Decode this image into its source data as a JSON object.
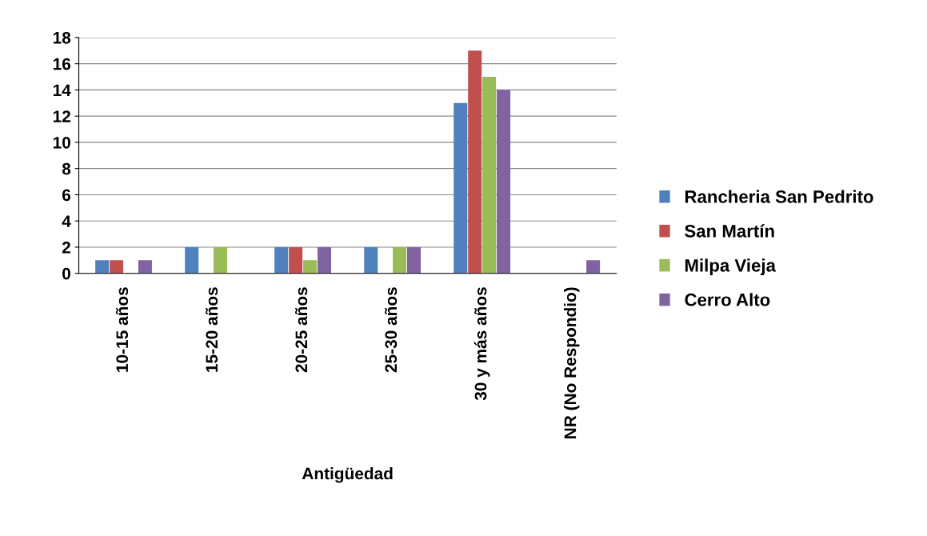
{
  "chart_data": {
    "type": "bar",
    "xlabel": "Antigüedad",
    "categories": [
      "10-15 años",
      "15-20 años",
      "20-25 años",
      "25-30 años",
      "30 y más años",
      "NR (No Respondio)"
    ],
    "series": [
      {
        "name": "Rancheria San Pedrito",
        "color": "#4f81bd",
        "values": [
          1,
          2,
          2,
          2,
          13,
          0
        ]
      },
      {
        "name": "San Martín",
        "color": "#c0504d",
        "values": [
          1,
          0,
          2,
          0,
          17,
          0
        ]
      },
      {
        "name": "Milpa Vieja",
        "color": "#9bbb59",
        "values": [
          0,
          2,
          1,
          2,
          15,
          0
        ]
      },
      {
        "name": "Cerro Alto",
        "color": "#8064a2",
        "values": [
          1,
          0,
          2,
          2,
          14,
          1
        ]
      }
    ],
    "ylim": [
      0,
      18
    ],
    "yticks": [
      0,
      2,
      4,
      6,
      8,
      10,
      12,
      14,
      16,
      18
    ],
    "grid": "y",
    "legend": "right"
  }
}
